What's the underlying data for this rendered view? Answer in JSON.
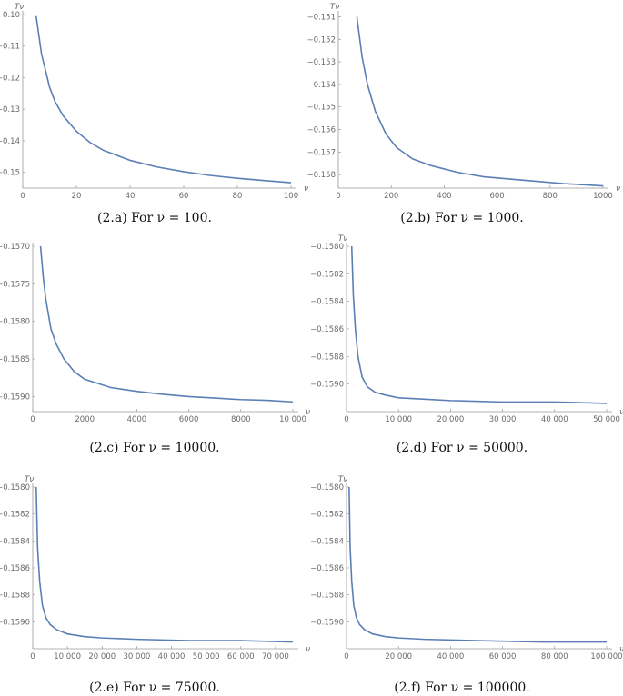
{
  "chart_data": [
    {
      "type": "line",
      "caption": "(2.a) For ν = 100.",
      "ylabel": "Tν",
      "xlabel": "ν",
      "xlim": [
        0,
        100
      ],
      "ylim": [
        -0.155,
        -0.1
      ],
      "xticks": [
        0,
        20,
        40,
        60,
        80,
        100
      ],
      "xtick_labels": [
        "0",
        "20",
        "40",
        "60",
        "80",
        "100"
      ],
      "yticks": [
        -0.15,
        -0.14,
        -0.13,
        -0.12,
        -0.11,
        -0.1
      ],
      "ytick_labels": [
        "-0.15",
        "-0.14",
        "-0.13",
        "-0.12",
        "-0.11",
        "-0.10"
      ],
      "series": [
        {
          "x": [
            5,
            7,
            10,
            12,
            15,
            20,
            25,
            30,
            40,
            50,
            60,
            70,
            80,
            90,
            100
          ],
          "values": [
            -0.1005,
            -0.1125,
            -0.123,
            -0.1275,
            -0.132,
            -0.137,
            -0.1405,
            -0.143,
            -0.1462,
            -0.1483,
            -0.1498,
            -0.151,
            -0.1519,
            -0.1526,
            -0.1533
          ]
        }
      ]
    },
    {
      "type": "line",
      "caption": "(2.b) For ν = 1000.",
      "ylabel": "Tν",
      "xlabel": "ν",
      "xlim": [
        0,
        1000
      ],
      "ylim": [
        -0.1586,
        -0.1509
      ],
      "xticks": [
        0,
        200,
        400,
        600,
        800,
        1000
      ],
      "xtick_labels": [
        "0",
        "200",
        "400",
        "600",
        "800",
        "1000"
      ],
      "yticks": [
        -0.158,
        -0.157,
        -0.156,
        -0.155,
        -0.154,
        -0.153,
        -0.152,
        -0.151
      ],
      "ytick_labels": [
        "-0.158",
        "-0.157",
        "-0.156",
        "-0.155",
        "-0.154",
        "-0.153",
        "-0.152",
        "-0.151"
      ],
      "series": [
        {
          "x": [
            70,
            90,
            110,
            140,
            180,
            220,
            280,
            350,
            450,
            550,
            650,
            750,
            850,
            1000
          ],
          "values": [
            -0.151,
            -0.1528,
            -0.154,
            -0.1552,
            -0.1562,
            -0.1568,
            -0.1573,
            -0.1576,
            -0.1579,
            -0.1581,
            -0.1582,
            -0.1583,
            -0.1584,
            -0.1585
          ]
        }
      ]
    },
    {
      "type": "line",
      "caption": "(2.c) For ν = 10000.",
      "ylabel": "",
      "xlabel": "ν",
      "xlim": [
        0,
        10000
      ],
      "ylim": [
        -0.1592,
        -0.157
      ],
      "xticks": [
        0,
        2000,
        4000,
        6000,
        8000,
        10000
      ],
      "xtick_labels": [
        "0",
        "2000",
        "4000",
        "6000",
        "8000",
        "10 000"
      ],
      "yticks": [
        -0.159,
        -0.1585,
        -0.158,
        -0.1575,
        -0.157
      ],
      "ytick_labels": [
        "-0.1590",
        "-0.1585",
        "-0.1580",
        "-0.1575",
        "-0.1570"
      ],
      "series": [
        {
          "x": [
            300,
            400,
            500,
            700,
            900,
            1200,
            1600,
            2000,
            3000,
            4000,
            5000,
            6000,
            7000,
            8000,
            9000,
            10000
          ],
          "values": [
            -0.157,
            -0.1574,
            -0.1577,
            -0.1581,
            -0.1583,
            -0.1585,
            -0.15867,
            -0.15877,
            -0.15888,
            -0.15893,
            -0.15897,
            -0.159,
            -0.15902,
            -0.15904,
            -0.15905,
            -0.15907
          ]
        }
      ]
    },
    {
      "type": "line",
      "caption": "(2.d) For ν = 50000.",
      "ylabel": "Tν",
      "xlabel": "ν",
      "xlim": [
        0,
        50000
      ],
      "ylim": [
        -0.1592,
        -0.158
      ],
      "xticks": [
        0,
        10000,
        20000,
        30000,
        40000,
        50000
      ],
      "xtick_labels": [
        "0",
        "10 000",
        "20 000",
        "30 000",
        "40 000",
        "50 000"
      ],
      "yticks": [
        -0.159,
        -0.1588,
        -0.1586,
        -0.1584,
        -0.1582,
        -0.158
      ],
      "ytick_labels": [
        "-0.1590",
        "-0.1588",
        "-0.1586",
        "-0.1584",
        "-0.1582",
        "-0.1580"
      ],
      "series": [
        {
          "x": [
            1000,
            1300,
            1700,
            2200,
            3000,
            4000,
            5500,
            7500,
            10000,
            15000,
            20000,
            30000,
            40000,
            50000
          ],
          "values": [
            -0.158,
            -0.15835,
            -0.1586,
            -0.1588,
            -0.15895,
            -0.15902,
            -0.15906,
            -0.15908,
            -0.1591,
            -0.15911,
            -0.15912,
            -0.15913,
            -0.15913,
            -0.15914
          ]
        }
      ]
    },
    {
      "type": "line",
      "caption": "(2.e) For ν = 75000.",
      "ylabel": "Tν",
      "xlabel": "ν",
      "xlim": [
        0,
        75000
      ],
      "ylim": [
        -0.1592,
        -0.158
      ],
      "xticks": [
        0,
        10000,
        20000,
        30000,
        40000,
        50000,
        60000,
        70000
      ],
      "xtick_labels": [
        "0",
        "10 000",
        "20 000",
        "30 000",
        "40 000",
        "50 000",
        "60 000",
        "70 000"
      ],
      "yticks": [
        -0.159,
        -0.1588,
        -0.1586,
        -0.1584,
        -0.1582,
        -0.158
      ],
      "ytick_labels": [
        "-0.1590",
        "-0.1588",
        "-0.1586",
        "-0.1584",
        "-0.1582",
        "-0.1580"
      ],
      "series": [
        {
          "x": [
            1000,
            1400,
            2000,
            2800,
            3800,
            5000,
            7000,
            10000,
            15000,
            20000,
            30000,
            45000,
            60000,
            75000
          ],
          "values": [
            -0.158,
            -0.15845,
            -0.1587,
            -0.15888,
            -0.15897,
            -0.15902,
            -0.15906,
            -0.15909,
            -0.15911,
            -0.15912,
            -0.15913,
            -0.15914,
            -0.15914,
            -0.15915
          ]
        }
      ]
    },
    {
      "type": "line",
      "caption": "(2.f) For ν = 100000.",
      "ylabel": "Tν",
      "xlabel": "ν",
      "xlim": [
        0,
        100000
      ],
      "ylim": [
        -0.1592,
        -0.158
      ],
      "xticks": [
        0,
        20000,
        40000,
        60000,
        80000,
        100000
      ],
      "xtick_labels": [
        "0",
        "20 000",
        "40 000",
        "60 000",
        "80 000",
        "100 000"
      ],
      "yticks": [
        -0.159,
        -0.1588,
        -0.1586,
        -0.1584,
        -0.1582,
        -0.158
      ],
      "ytick_labels": [
        "-0.1590",
        "-0.1588",
        "-0.1586",
        "-0.1584",
        "-0.1582",
        "-0.1580"
      ],
      "series": [
        {
          "x": [
            1000,
            1400,
            2000,
            2800,
            3800,
            5000,
            7000,
            10000,
            15000,
            20000,
            30000,
            50000,
            75000,
            100000
          ],
          "values": [
            -0.158,
            -0.15845,
            -0.1587,
            -0.15888,
            -0.15897,
            -0.15902,
            -0.15906,
            -0.15909,
            -0.15911,
            -0.15912,
            -0.15913,
            -0.15914,
            -0.15915,
            -0.15915
          ]
        }
      ]
    }
  ]
}
